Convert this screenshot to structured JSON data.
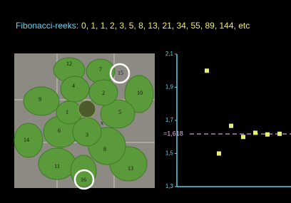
{
  "title": {
    "label": "Fibonacci-reeks:",
    "sequence": "0, 1, 1, 2, 3, 5, 8, 13, 21, 34, 55, 89, 144, etc"
  },
  "photo": {
    "leaf_labels": [
      "12",
      "7",
      "15",
      "4",
      "2",
      "10",
      "9",
      "1",
      "5",
      "x",
      "6",
      "3",
      "14",
      "8",
      "11",
      "13",
      "16"
    ]
  },
  "chart_data": {
    "type": "scatter",
    "categories": [
      null,
      null,
      null,
      null,
      null,
      null,
      null
    ],
    "values": [
      2.0,
      1.5,
      1.667,
      1.6,
      1.625,
      1.615,
      1.619
    ],
    "color": "#e6ee7a",
    "ylim": [
      1.3,
      2.1
    ],
    "yticks": [
      {
        "value": 1.3,
        "label": "1,3"
      },
      {
        "value": 1.5,
        "label": "1,5"
      },
      {
        "value": 1.7,
        "label": "1,7"
      },
      {
        "value": 1.9,
        "label": "1,9"
      },
      {
        "value": 2.1,
        "label": "2,1"
      }
    ],
    "reference_line": {
      "value": 1.618,
      "label": "=1,618",
      "color": "#e8b4e0"
    },
    "axis_color": "#5fd0e6"
  }
}
